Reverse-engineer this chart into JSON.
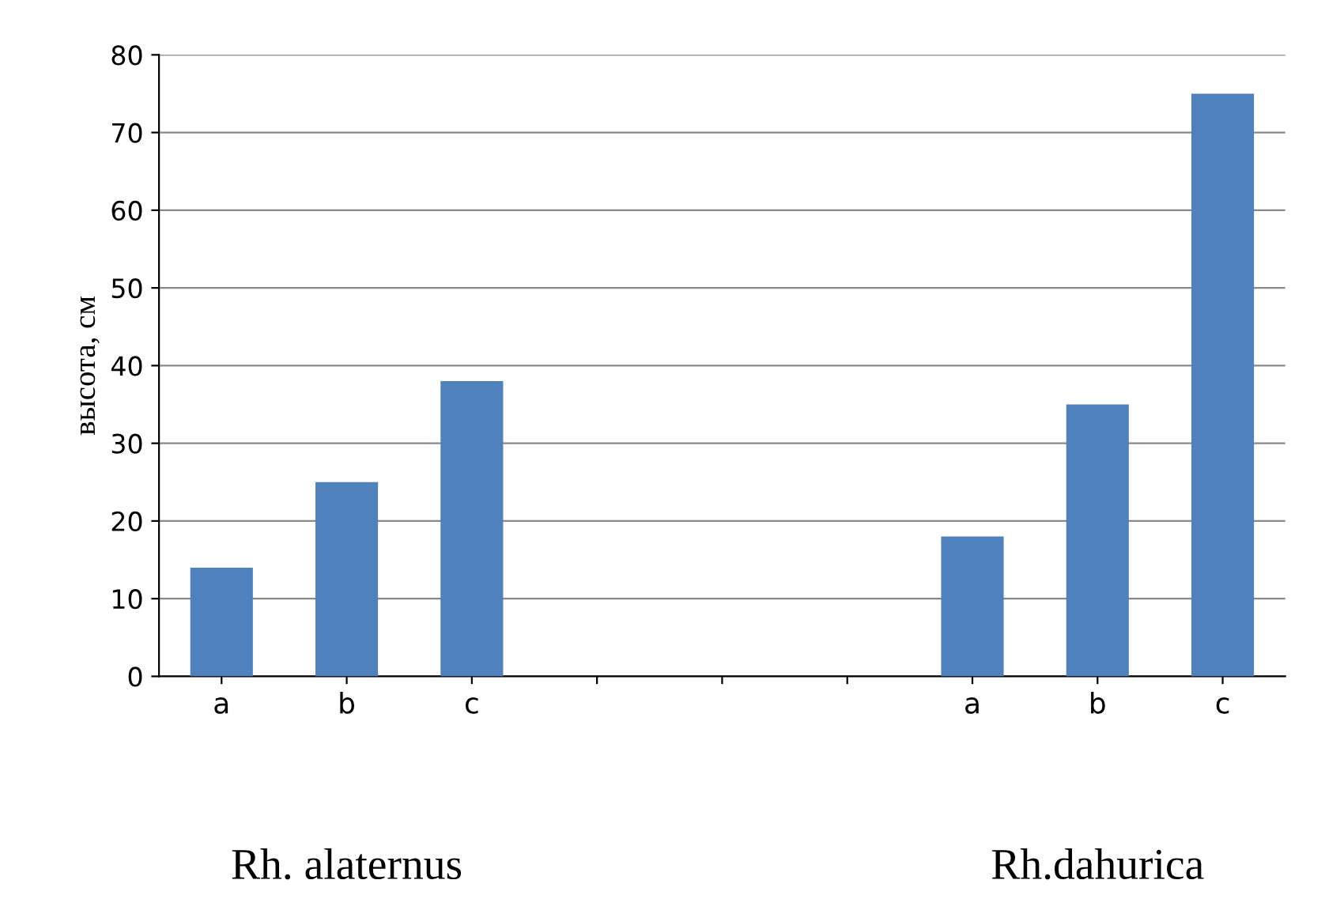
{
  "chart_data": {
    "type": "bar",
    "ylabel": "высота, см",
    "categories": [
      "a",
      "b",
      "c",
      null,
      null,
      null,
      "a",
      "b",
      "c"
    ],
    "values": [
      14,
      25,
      38,
      null,
      null,
      null,
      18,
      35,
      75
    ],
    "color": "#4f81bd",
    "ylim": [
      0,
      80
    ],
    "yticks": [
      0,
      10,
      20,
      30,
      40,
      50,
      60,
      70,
      80
    ],
    "grid": "y",
    "annotations": [
      "Rh. alaternus",
      "Rh.dahurica"
    ]
  }
}
